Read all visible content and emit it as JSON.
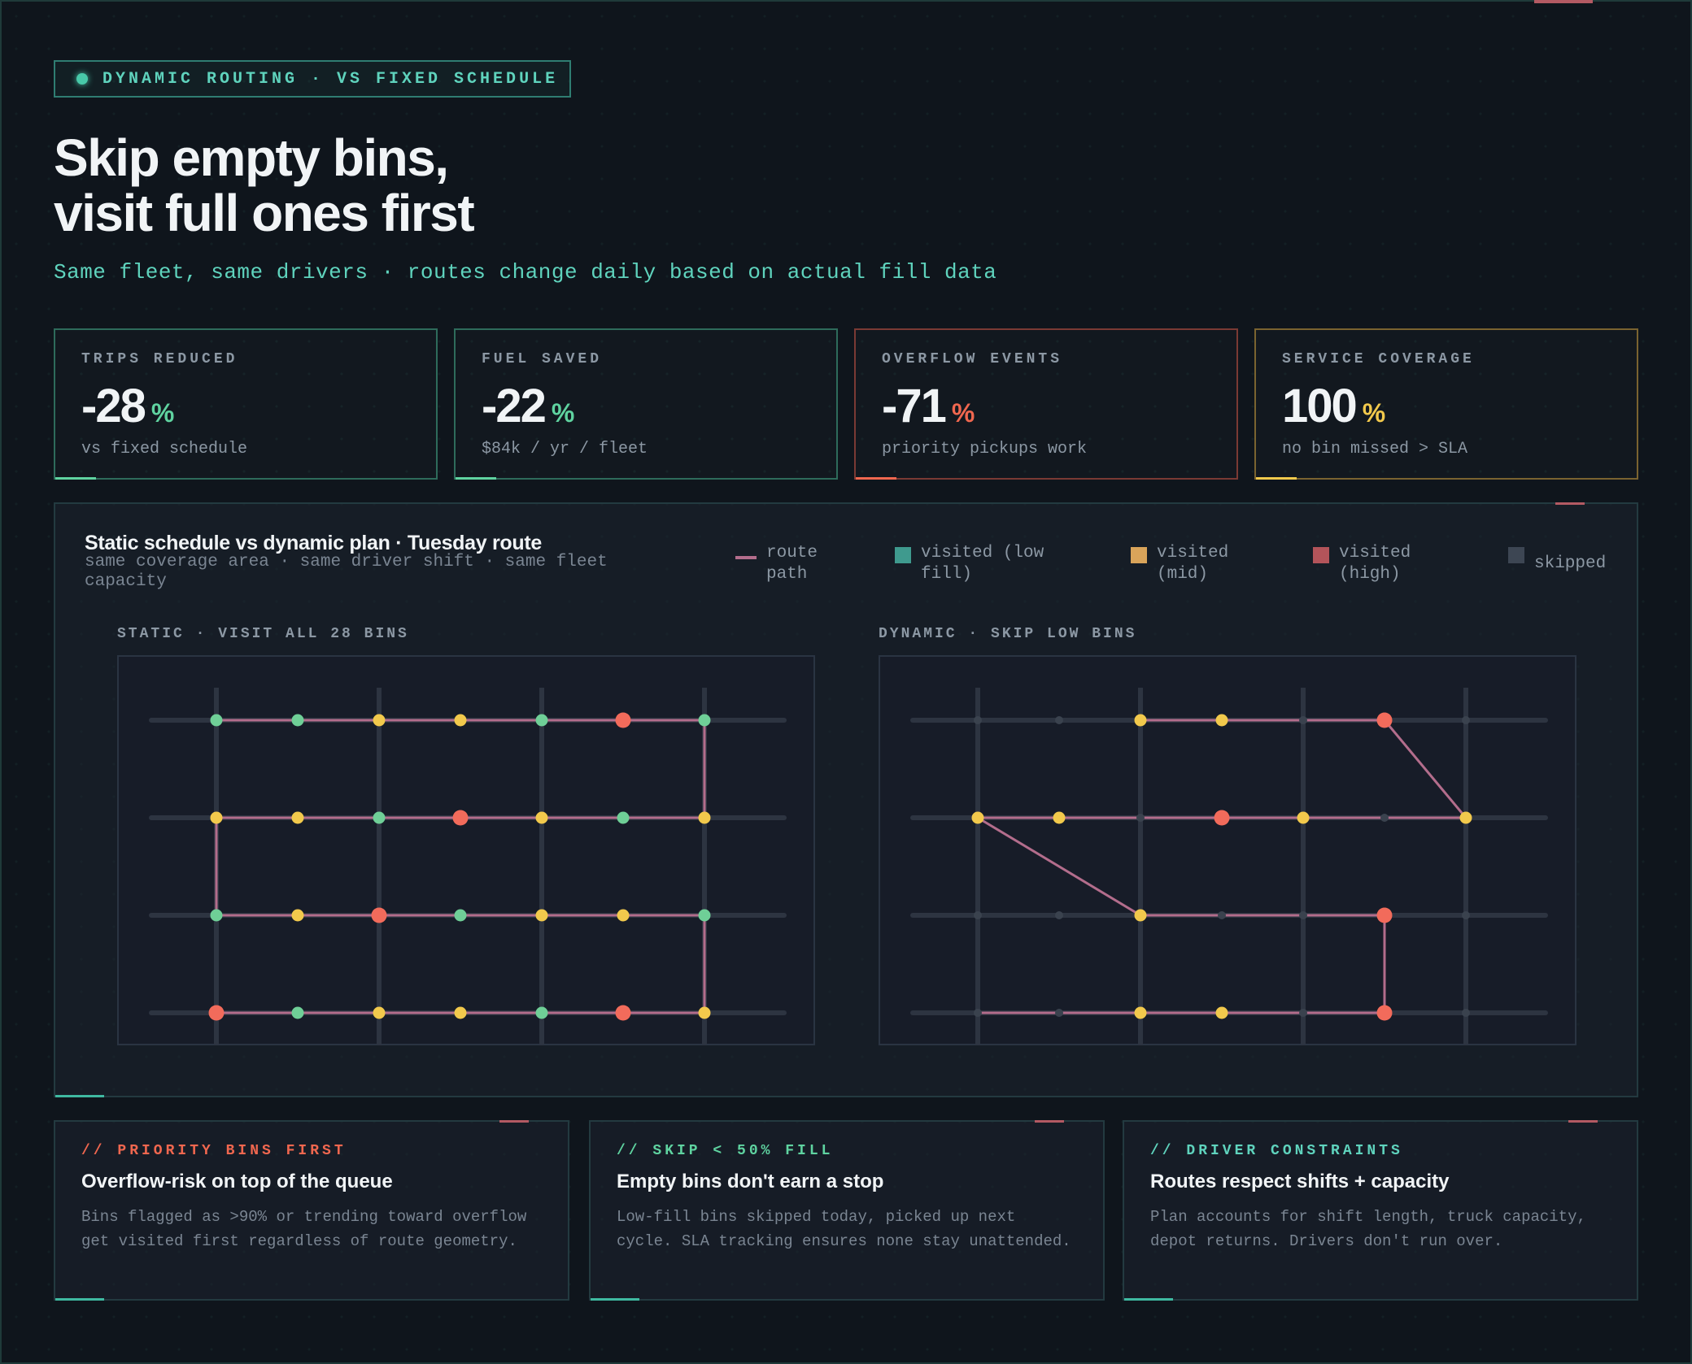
{
  "eyebrow": "DYNAMIC ROUTING · VS FIXED SCHEDULE",
  "title_lines": [
    "Skip empty bins,",
    "visit full ones first"
  ],
  "subtitle": "Same fleet, same drivers · routes change daily based on actual fill data",
  "kpis": [
    {
      "label": "TRIPS REDUCED",
      "value": "-28",
      "unit": "%",
      "note": "vs fixed schedule",
      "accent": "#5fd3a0",
      "border": "#2e6b5b"
    },
    {
      "label": "FUEL SAVED",
      "value": "-22",
      "unit": "%",
      "note": "$84k / yr / fleet",
      "accent": "#5fd3a0",
      "border": "#2e6b5b"
    },
    {
      "label": "OVERFLOW EVENTS",
      "value": "-71",
      "unit": "%",
      "note": "priority pickups work",
      "accent": "#f0674f",
      "border": "#7a3a34"
    },
    {
      "label": "SERVICE COVERAGE",
      "value": "100",
      "unit": "%",
      "note": "no bin missed > SLA",
      "accent": "#f2c94c",
      "border": "#7a6330"
    }
  ],
  "panel": {
    "title": "Static schedule vs dynamic plan · Tuesday route",
    "subtitle": "same coverage area · same driver shift · same fleet capacity"
  },
  "legend": [
    {
      "label": "route path",
      "kind": "line",
      "color": "#b36d8c"
    },
    {
      "label": "visited (low fill)",
      "kind": "square",
      "color": "#3f9a8e"
    },
    {
      "label": "visited (mid)",
      "kind": "square",
      "color": "#d9a45a"
    },
    {
      "label": "visited (high)",
      "kind": "square",
      "color": "#b3545a"
    },
    {
      "label": "skipped",
      "kind": "square",
      "color": "#3d4653"
    }
  ],
  "colors": {
    "low": "#6fcf97",
    "mid": "#f2c94c",
    "high": "#f26b5b",
    "skipped": "#3a424e",
    "route": "#b36d8c",
    "street": "#2d3441"
  },
  "maps": [
    {
      "label": "STATIC · VISIT ALL 28 BINS",
      "bins": [
        [
          "low",
          "low",
          "mid",
          "mid",
          "low",
          "high",
          "low"
        ],
        [
          "mid",
          "mid",
          "low",
          "high",
          "mid",
          "low",
          "mid"
        ],
        [
          "low",
          "mid",
          "high",
          "low",
          "mid",
          "mid",
          "low"
        ],
        [
          "high",
          "low",
          "mid",
          "mid",
          "low",
          "high",
          "mid"
        ]
      ],
      "route": [
        [
          0,
          0
        ],
        [
          6,
          0
        ],
        [
          6,
          1
        ],
        [
          0,
          1
        ],
        [
          0,
          2
        ],
        [
          6,
          2
        ],
        [
          6,
          3
        ],
        [
          0,
          3
        ]
      ]
    },
    {
      "label": "DYNAMIC · SKIP LOW BINS",
      "bins": [
        [
          "skipped",
          "skipped",
          "mid",
          "mid",
          "skipped",
          "high",
          "skipped"
        ],
        [
          "mid",
          "mid",
          "skipped",
          "high",
          "mid",
          "skipped",
          "mid"
        ],
        [
          "skipped",
          "skipped",
          "mid",
          "skipped",
          "skipped",
          "high",
          "skipped"
        ],
        [
          "skipped",
          "skipped",
          "mid",
          "mid",
          "skipped",
          "high",
          "skipped"
        ]
      ],
      "route": [
        [
          2,
          0
        ],
        [
          5,
          0
        ],
        [
          6,
          1
        ],
        [
          0,
          1
        ],
        [
          2,
          2
        ],
        [
          5,
          2
        ],
        [
          5,
          3
        ],
        [
          0,
          3
        ]
      ]
    }
  ],
  "cards": [
    {
      "tag": "// PRIORITY BINS FIRST",
      "tag_color": "#f0674f",
      "head": "Overflow-risk on top of the queue",
      "body": "Bins flagged as >90% or trending toward overflow get visited first regardless of route geometry."
    },
    {
      "tag": "// SKIP < 50% FILL",
      "tag_color": "#5fd3a0",
      "head": "Empty bins don't earn a stop",
      "body": "Low-fill bins skipped today, picked up next cycle. SLA tracking ensures none stay unattended."
    },
    {
      "tag": "// DRIVER CONSTRAINTS",
      "tag_color": "#5fd3bd",
      "head": "Routes respect shifts + capacity",
      "body": "Plan accounts for shift length, truck capacity, depot returns. Drivers don't run over."
    }
  ]
}
